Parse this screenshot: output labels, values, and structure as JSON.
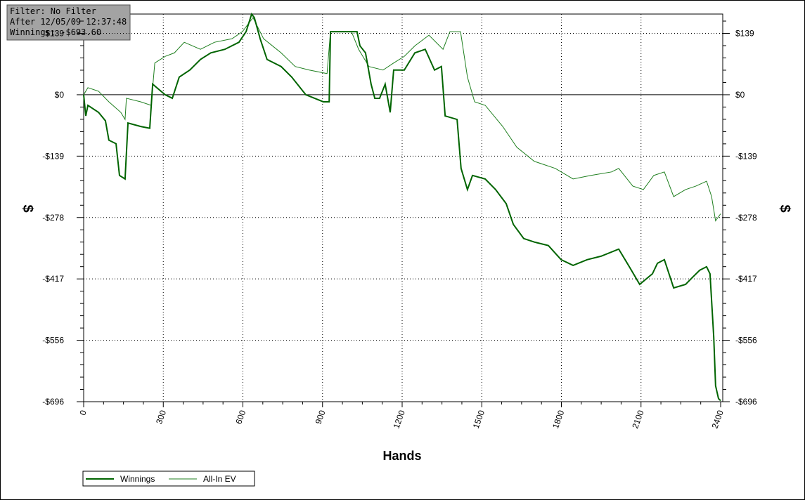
{
  "chart_data": {
    "type": "line",
    "info": [
      "Filter: No Filter",
      "After 12/05/09 12:37:48",
      "Winnings: -$693.60"
    ],
    "xlabel": "Hands",
    "ylabel": "$",
    "y2label": "$",
    "xlim": [
      0,
      2400
    ],
    "xticks": [
      0,
      300,
      600,
      900,
      1200,
      1500,
      1800,
      2100,
      2400
    ],
    "ylim": [
      -696,
      183
    ],
    "yticks": [
      {
        "value": 139.2,
        "label": "$139"
      },
      {
        "value": 0,
        "label": "$0"
      },
      {
        "value": -139.2,
        "label": "-$139"
      },
      {
        "value": -278.4,
        "label": "-$278"
      },
      {
        "value": -417.6,
        "label": "-$417"
      },
      {
        "value": -556.8,
        "label": "-$556"
      },
      {
        "value": -696,
        "label": "-$696"
      }
    ],
    "grid": true,
    "series": [
      {
        "name": "Winnings",
        "color": "#006400",
        "x": [
          0,
          8,
          16,
          56,
          82,
          95,
          122,
          135,
          156,
          167,
          215,
          249,
          260,
          307,
          334,
          360,
          400,
          440,
          479,
          532,
          585,
          612,
          633,
          643,
          665,
          691,
          744,
          784,
          837,
          903,
          925,
          930,
          983,
          1030,
          1041,
          1062,
          1083,
          1097,
          1115,
          1136,
          1155,
          1168,
          1208,
          1248,
          1287,
          1322,
          1348,
          1362,
          1407,
          1422,
          1446,
          1465,
          1513,
          1552,
          1592,
          1619,
          1658,
          1698,
          1751,
          1799,
          1844,
          1897,
          1950,
          2016,
          2056,
          2095,
          2143,
          2162,
          2188,
          2223,
          2268,
          2294,
          2321,
          2347,
          2360,
          2374,
          2381,
          2392,
          2400
        ],
        "values": [
          0,
          -48,
          -24,
          -40,
          -59,
          -103,
          -111,
          -183,
          -191,
          -64,
          -72,
          -76,
          24,
          0,
          -8,
          40,
          56,
          80,
          95,
          103,
          119,
          143,
          183,
          175,
          127,
          80,
          64,
          40,
          0,
          -16,
          -16,
          143,
          143,
          143,
          111,
          95,
          24,
          -8,
          -8,
          24,
          -40,
          56,
          56,
          95,
          103,
          56,
          64,
          -48,
          -56,
          -167,
          -215,
          -183,
          -191,
          -215,
          -247,
          -294,
          -326,
          -334,
          -342,
          -374,
          -387,
          -374,
          -366,
          -350,
          -390,
          -430,
          -406,
          -382,
          -374,
          -438,
          -430,
          -414,
          -398,
          -390,
          -406,
          -549,
          -660,
          -689,
          -693.6
        ]
      },
      {
        "name": "All-In EV",
        "color": "#1f7f1f",
        "x": [
          0,
          16,
          56,
          95,
          140,
          156,
          161,
          215,
          254,
          268,
          307,
          342,
          379,
          440,
          493,
          559,
          598,
          638,
          678,
          744,
          797,
          850,
          917,
          930,
          1009,
          1036,
          1075,
          1128,
          1168,
          1208,
          1248,
          1301,
          1354,
          1380,
          1420,
          1446,
          1473,
          1513,
          1579,
          1632,
          1698,
          1777,
          1844,
          1910,
          1989,
          2016,
          2069,
          2109,
          2148,
          2188,
          2223,
          2268,
          2307,
          2347,
          2366,
          2381,
          2400
        ],
        "values": [
          0,
          16,
          8,
          -16,
          -40,
          -56,
          -8,
          -16,
          -24,
          72,
          87,
          95,
          119,
          103,
          119,
          127,
          143,
          175,
          127,
          95,
          64,
          56,
          48,
          143,
          143,
          103,
          64,
          56,
          72,
          87,
          111,
          135,
          103,
          143,
          143,
          40,
          -16,
          -24,
          -72,
          -119,
          -151,
          -167,
          -191,
          -183,
          -175,
          -167,
          -207,
          -215,
          -183,
          -175,
          -231,
          -215,
          -207,
          -196,
          -231,
          -286,
          -270
        ]
      }
    ]
  }
}
